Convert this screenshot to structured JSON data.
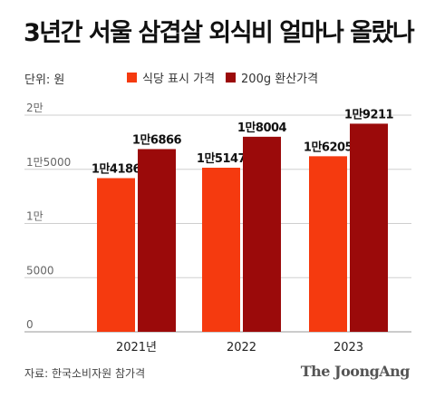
{
  "title": "3년간 서울 삼겹살 외식비 얼마나 올랐나",
  "unit": "단위: 원",
  "source": "자료: 한국소비자원 참가격",
  "brand": "The JoongAng",
  "colors": {
    "series1": "#F53A0F",
    "series2": "#9B0A0A",
    "grid": "#CFCFCF"
  },
  "chart_data": {
    "type": "bar",
    "categories": [
      "2021년",
      "2022",
      "2023"
    ],
    "series": [
      {
        "name": "식당 표시 가격",
        "values": [
          14186,
          15147,
          16205
        ],
        "labels": [
          "1만4186",
          "1만5147",
          "1만6205"
        ]
      },
      {
        "name": "200g 환산가격",
        "values": [
          16866,
          18004,
          19211
        ],
        "labels": [
          "1만6866",
          "1만8004",
          "1만9211"
        ]
      }
    ],
    "yticks": [
      0,
      5000,
      10000,
      15000,
      20000
    ],
    "ytick_labels": [
      "0",
      "5000",
      "1만",
      "1만5000",
      "2만"
    ],
    "ylim": [
      0,
      20000
    ],
    "grid": true,
    "legend": "top"
  }
}
